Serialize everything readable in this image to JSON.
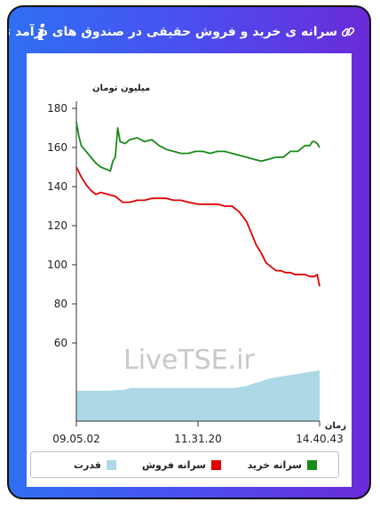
{
  "header": {
    "title": "سرانه ی خرید و فروش حقیقی در صندوق های درآمد ثابت",
    "link_icon": "link-icon",
    "info_icon": "info-icon",
    "info_glyph": "i"
  },
  "watermark": "LiveTSE.ir",
  "legend": {
    "buy_label": "سرانه خرید",
    "sell_label": "سرانه فروش",
    "power_label": "قدرت"
  },
  "colors": {
    "buy": "#1a8a1a",
    "sell": "#e00000",
    "power": "#add8e6"
  },
  "chart_data": {
    "type": "line",
    "ylabel": "میلیون تومان",
    "xlabel": "زمان",
    "ylim": [
      20,
      180
    ],
    "yticks": [
      60,
      80,
      100,
      120,
      140,
      160,
      180
    ],
    "xticks": [
      "09.05.02",
      "11.31.20",
      "14.40.43"
    ],
    "xticks_at": [
      0,
      0.5,
      1
    ],
    "series": [
      {
        "name": "سرانه خرید",
        "color": "#1a8a1a",
        "t": [
          0,
          0.01,
          0.02,
          0.04,
          0.06,
          0.08,
          0.1,
          0.12,
          0.14,
          0.15,
          0.16,
          0.17,
          0.18,
          0.2,
          0.22,
          0.25,
          0.28,
          0.31,
          0.34,
          0.37,
          0.4,
          0.43,
          0.46,
          0.49,
          0.52,
          0.55,
          0.58,
          0.61,
          0.64,
          0.67,
          0.7,
          0.73,
          0.76,
          0.79,
          0.82,
          0.85,
          0.88,
          0.91,
          0.94,
          0.96,
          0.97,
          0.98,
          0.99,
          1.0
        ],
        "values": [
          173,
          166,
          161,
          158,
          155,
          152,
          150,
          149,
          148,
          153,
          155,
          170,
          163,
          162,
          164,
          165,
          163,
          164,
          161,
          159,
          158,
          157,
          157,
          158,
          158,
          157,
          158,
          158,
          157,
          156,
          155,
          154,
          153,
          154,
          155,
          155,
          158,
          158,
          161,
          161,
          163,
          163,
          162,
          160
        ]
      },
      {
        "name": "سرانه فروش",
        "color": "#e00000",
        "t": [
          0,
          0.02,
          0.04,
          0.06,
          0.08,
          0.1,
          0.13,
          0.16,
          0.19,
          0.22,
          0.25,
          0.28,
          0.31,
          0.34,
          0.37,
          0.4,
          0.43,
          0.46,
          0.5,
          0.54,
          0.58,
          0.61,
          0.64,
          0.67,
          0.7,
          0.72,
          0.74,
          0.76,
          0.78,
          0.8,
          0.82,
          0.84,
          0.86,
          0.88,
          0.9,
          0.92,
          0.94,
          0.96,
          0.98,
          0.99,
          1.0
        ],
        "values": [
          150,
          145,
          141,
          138,
          136,
          137,
          136,
          135,
          132,
          132,
          133,
          133,
          134,
          134,
          134,
          133,
          133,
          132,
          131,
          131,
          131,
          130,
          130,
          127,
          122,
          116,
          110,
          106,
          101,
          99,
          97,
          97,
          96,
          96,
          95,
          95,
          95,
          94,
          94,
          95,
          89
        ]
      },
      {
        "name": "قدرت",
        "color": "#add8e6",
        "type": "area",
        "t": [
          0,
          0.1,
          0.2,
          0.22,
          0.3,
          0.4,
          0.5,
          0.6,
          0.65,
          0.7,
          0.72,
          0.75,
          0.8,
          0.85,
          0.9,
          0.95,
          1.0
        ],
        "values": [
          35.5,
          35.5,
          36,
          37,
          37,
          37,
          37,
          37,
          37,
          38,
          39,
          40,
          42,
          43,
          44,
          45,
          46
        ]
      }
    ]
  }
}
